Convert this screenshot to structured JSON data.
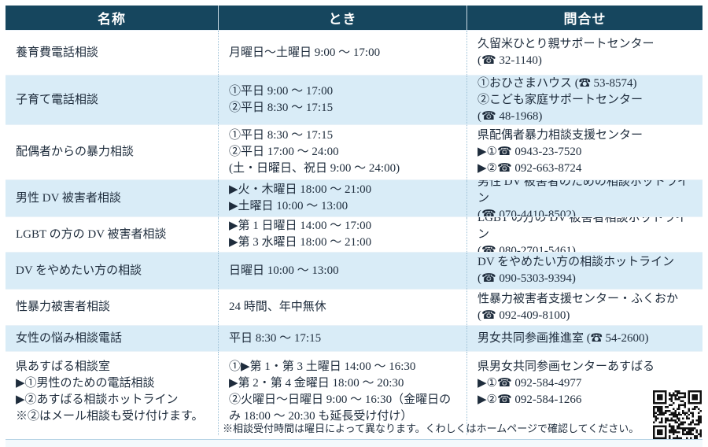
{
  "table": {
    "headers": [
      "名称",
      "とき",
      "問合せ"
    ],
    "rows": [
      {
        "name_lines": [
          "養育費電話相談"
        ],
        "time_lines": [
          "月曜日～土曜日 9:00 ～ 17:00"
        ],
        "contact_lines": [
          "久留米ひとり親サポートセンター",
          "(☎ 32-1140)"
        ]
      },
      {
        "name_lines": [
          "子育て電話相談"
        ],
        "time_lines": [
          "①平日 9:00 ～ 17:00",
          "②平日 8:30 ～ 17:15"
        ],
        "contact_lines": [
          "①おひさまハウス (☎ 53-8574)",
          "②こども家庭サポートセンター",
          "(☎ 48-1968)"
        ]
      },
      {
        "name_lines": [
          "配偶者からの暴力相談"
        ],
        "time_lines": [
          "①平日 8:30 ～ 17:15",
          "②平日 17:00 ～ 24:00",
          "(土・日曜日、祝日 9:00 ～ 24:00)"
        ],
        "contact_lines": [
          "県配偶者暴力相談支援センター",
          "▶①☎ 0943-23-7520",
          "▶②☎ 092-663-8724"
        ]
      },
      {
        "name_lines": [
          "男性 DV 被害者相談"
        ],
        "time_lines": [
          "▶火・木曜日 18:00 ～ 21:00",
          "▶土曜日 10:00 ～ 13:00"
        ],
        "contact_lines": [
          "男性 DV 被害者のための相談ホットライン",
          "(☎ 070-4410-8502)"
        ]
      },
      {
        "name_lines": [
          "LGBT の方の DV 被害者相談"
        ],
        "time_lines": [
          "▶第 1 日曜日 14:00 ～ 17:00",
          "▶第 3 水曜日 18:00 ～ 21:00"
        ],
        "contact_lines": [
          "LGBT の方の DV 被害者相談ホットライン",
          "(☎ 080-2701-5461)"
        ]
      },
      {
        "name_lines": [
          "DV をやめたい方の相談"
        ],
        "time_lines": [
          "日曜日 10:00 ～ 13:00"
        ],
        "contact_lines": [
          "DV をやめたい方の相談ホットライン",
          "(☎ 090-5303-9394)"
        ]
      },
      {
        "name_lines": [
          "性暴力被害者相談"
        ],
        "time_lines": [
          "24 時間、年中無休"
        ],
        "contact_lines": [
          "性暴力被害者支援センター・ふくおか",
          "(☎ 092-409-8100)"
        ]
      },
      {
        "name_lines": [
          "女性の悩み相談電話"
        ],
        "time_lines": [
          "平日 8:30 ～ 17:15"
        ],
        "contact_lines": [
          "男女共同参画推進室 (☎ 54-2600)"
        ]
      },
      {
        "name_lines": [
          "県あすばる相談室",
          "▶①男性のための電話相談",
          "▶②あすばる相談ホットライン",
          "※②はメール相談も受け付けます。"
        ],
        "time_lines": [
          "①▶第 1・第 3 土曜日 14:00 ～ 16:30",
          "▶第 2・第 4 金曜日 18:00 ～ 20:30",
          "②火曜日～日曜日 9:00 ～ 16:30（金曜日のみ 18:00 ～ 20:30 も延長受け付け）"
        ],
        "contact_lines": [
          "県男女共同参画センターあすばる",
          "▶①☎ 092-584-4977",
          "▶②☎ 092-584-1266"
        ]
      }
    ],
    "footnote": "※相談受付時間は曜日によって異なります。くわしくはホームページで確認してください。"
  },
  "icons": {
    "phone-icon": "☎",
    "bullet-icon": "▶",
    "qr-code": "QRコード"
  },
  "colors": {
    "header_bg": "#16465e",
    "row_alt_bg": "#d9ecf7",
    "text": "#1e2c3c",
    "header_text": "#ffffff"
  }
}
